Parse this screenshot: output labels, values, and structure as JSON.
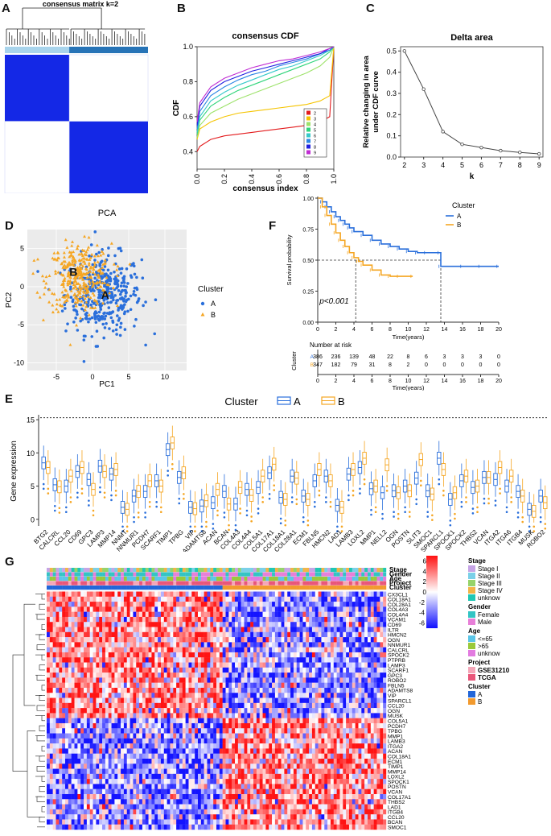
{
  "panels": {
    "A": {
      "label": "A",
      "title": "consensus matrix k=2",
      "colors": {
        "cluster1": "#a8d4ec",
        "cluster2": "#2774b7",
        "fill": "#1428e6",
        "empty": "#ffffff"
      }
    },
    "B": {
      "label": "B",
      "title": "consensus CDF",
      "xlabel": "consensus index",
      "ylabel": "CDF",
      "xticks": [
        "0.0",
        "0.2",
        "0.4",
        "0.6",
        "0.8",
        "1.0"
      ],
      "yticks": [
        "0.4",
        "0.6",
        "0.8",
        "1.0"
      ],
      "legend": [
        {
          "name": "2",
          "color": "#e31a1c"
        },
        {
          "name": "3",
          "color": "#f5c400"
        },
        {
          "name": "4",
          "color": "#9de26a"
        },
        {
          "name": "5",
          "color": "#2fd47a"
        },
        {
          "name": "6",
          "color": "#36c9c9"
        },
        {
          "name": "7",
          "color": "#2b86e3"
        },
        {
          "name": "8",
          "color": "#1f1fe0"
        },
        {
          "name": "9",
          "color": "#c02cd3"
        }
      ]
    },
    "C": {
      "label": "C",
      "title": "Delta area",
      "xlabel": "k",
      "ylabel_line1": "Relative changing in area",
      "ylabel_line2": "under CDF curve",
      "xticks": [
        "2",
        "3",
        "4",
        "5",
        "6",
        "7",
        "8",
        "9"
      ],
      "yticks": [
        "0.0",
        "0.1",
        "0.2",
        "0.3",
        "0.4",
        "0.5"
      ]
    },
    "D": {
      "label": "D",
      "title": "PCA",
      "xlabel": "PC1",
      "ylabel": "PC2",
      "xticks": [
        "-5",
        "0",
        "5",
        "10"
      ],
      "yticks": [
        "-10",
        "-5",
        "0",
        "5"
      ],
      "cluster_text_a": "A",
      "cluster_text_b": "B",
      "legend_title": "Cluster",
      "legend": [
        {
          "name": "A",
          "color": "#2a6fdb"
        },
        {
          "name": "B",
          "color": "#f5a623"
        }
      ]
    },
    "F": {
      "label": "F",
      "ylabel": "Survival probability",
      "xlabel": "Time(years)",
      "pvalue": "p<0.001",
      "yticks": [
        "0.00",
        "0.25",
        "0.50",
        "0.75",
        "1.00"
      ],
      "xticks": [
        "0",
        "2",
        "4",
        "6",
        "8",
        "10",
        "12",
        "14",
        "16",
        "18",
        "20"
      ],
      "legend_title": "Cluster",
      "legend": [
        {
          "name": "A",
          "color": "#2a6fdb"
        },
        {
          "name": "B",
          "color": "#f5a623"
        }
      ],
      "risk_title": "Number at risk",
      "risk_axis": "Cluster",
      "risk_row_labels": [
        "A",
        "B"
      ],
      "risk_A": [
        "386",
        "236",
        "139",
        "48",
        "22",
        "8",
        "6",
        "3",
        "3",
        "3",
        "0"
      ],
      "risk_B": [
        "347",
        "182",
        "79",
        "31",
        "8",
        "2",
        "0",
        "0",
        "0",
        "0",
        "0"
      ],
      "risk_xlabel": "Time(years)"
    },
    "E": {
      "label": "E",
      "legend_title": "Cluster",
      "legend": [
        {
          "name": "A",
          "color": "#2a6fdb"
        },
        {
          "name": "B",
          "color": "#f5a623"
        }
      ],
      "ylabel": "Gene expression",
      "yticks": [
        "0",
        "5",
        "10",
        "15"
      ],
      "genes": [
        "BTG2",
        "CALCRL",
        "CCL20",
        "CD69",
        "GPC3",
        "LAMP3",
        "MMP14",
        "NNMT",
        "NNMUR1",
        "PCDH7",
        "SCARF1",
        "TIMP1",
        "TPBG",
        "VIP",
        "ADAMTS8",
        "ACAN",
        "BCAN",
        "COL4A3",
        "COL4A4",
        "COL5A1",
        "COL17A1",
        "COL18A1",
        "COL28A1",
        "ECM1",
        "FBLN5",
        "HMCN2",
        "LAD1",
        "LAMB3",
        "LOXL2",
        "MMP1",
        "NELL2",
        "OGN",
        "POSTN",
        "SLIT3",
        "SMOC1",
        "SPARCL1",
        "SPOCK1",
        "SPOCK2",
        "THBS2",
        "VCAN",
        "ITGA2",
        "ITGA6",
        "ITGB4",
        "MUSK",
        "ROBO2"
      ]
    },
    "G": {
      "label": "G",
      "ann_rows": [
        "Stage",
        "Gender",
        "Age",
        "Project",
        "Cluster"
      ],
      "genes": [
        "CX3CL1",
        "COL18A1",
        "COL28A1",
        "COL4A3",
        "COL4A4",
        "VCAM1",
        "CD69",
        "ILTR",
        "HMCN2",
        "OGN",
        "NNMUR1",
        "CALCRL",
        "SPOCK2",
        "PTPRB",
        "LAMP3",
        "SCARF1",
        "GPC3",
        "ROBO2",
        "FBLN5",
        "ADAMTS8",
        "VIP",
        "SPARCL1",
        "CCL20",
        "OGN",
        "MUSK",
        "COL5A1",
        "PCDH7",
        "TPBG",
        "MMP1",
        "LAMB3",
        "ITGA2",
        "ACAN",
        "COL18A1",
        "ECM1",
        "TIMP1",
        "MMP14",
        "LOXL2",
        "SPOCK1",
        "POSTN",
        "VCAN",
        "COL17A1",
        "THBS2",
        "LAD1",
        "ITGB4",
        "CCL20",
        "BCAN",
        "SMOC1"
      ],
      "colorbar_ticks": [
        "6",
        "4",
        "2",
        "0",
        "-2",
        "-4",
        "-6"
      ],
      "legend_groups": [
        {
          "title": "Stage",
          "items": [
            {
              "name": "Stage I",
              "color": "#c6a4e6"
            },
            {
              "name": "Stage II",
              "color": "#7ad0e8"
            },
            {
              "name": "Stage III",
              "color": "#96d36a"
            },
            {
              "name": "Stage IV",
              "color": "#f2b447"
            },
            {
              "name": "unknow",
              "color": "#1fc7b4"
            }
          ]
        },
        {
          "title": "Gender",
          "items": [
            {
              "name": "Female",
              "color": "#33c4c4"
            },
            {
              "name": "Male",
              "color": "#e77fd8"
            }
          ]
        },
        {
          "title": "Age",
          "items": [
            {
              "name": "<=65",
              "color": "#5bc6e8"
            },
            {
              "name": ">65",
              "color": "#9ac93a"
            },
            {
              "name": "unknow",
              "color": "#e27be0"
            }
          ]
        },
        {
          "title": "Project",
          "items": [
            {
              "name": "GSE31210",
              "color": "#f4a6b8"
            },
            {
              "name": "TCGA",
              "color": "#e9567a"
            }
          ]
        },
        {
          "title": "Cluster",
          "items": [
            {
              "name": "A",
              "color": "#2266d9"
            },
            {
              "name": "B",
              "color": "#f29a2e"
            }
          ]
        }
      ]
    }
  },
  "chart_data": [
    {
      "type": "heatmap",
      "panel": "A",
      "title": "consensus matrix k=2",
      "clusters": 2,
      "cluster_fractions": [
        0.45,
        0.55
      ]
    },
    {
      "type": "line",
      "panel": "B",
      "title": "consensus CDF",
      "xlabel": "consensus index",
      "ylabel": "CDF",
      "xlim": [
        0,
        1
      ],
      "ylim": [
        0.3,
        1.0
      ],
      "x": [
        0.0,
        0.02,
        0.1,
        0.2,
        0.3,
        0.4,
        0.5,
        0.6,
        0.7,
        0.8,
        0.9,
        0.97,
        1.0
      ],
      "series": [
        {
          "name": "2",
          "values": [
            0.4,
            0.43,
            0.47,
            0.49,
            0.5,
            0.51,
            0.52,
            0.53,
            0.54,
            0.55,
            0.57,
            0.6,
            1.0
          ]
        },
        {
          "name": "3",
          "values": [
            0.47,
            0.53,
            0.57,
            0.6,
            0.62,
            0.63,
            0.64,
            0.65,
            0.66,
            0.67,
            0.69,
            0.72,
            1.0
          ]
        },
        {
          "name": "4",
          "values": [
            0.48,
            0.55,
            0.62,
            0.66,
            0.7,
            0.73,
            0.76,
            0.79,
            0.82,
            0.85,
            0.89,
            0.94,
            1.0
          ]
        },
        {
          "name": "5",
          "values": [
            0.5,
            0.58,
            0.66,
            0.71,
            0.75,
            0.78,
            0.81,
            0.84,
            0.87,
            0.9,
            0.93,
            0.97,
            1.0
          ]
        },
        {
          "name": "6",
          "values": [
            0.51,
            0.6,
            0.69,
            0.74,
            0.78,
            0.81,
            0.84,
            0.87,
            0.89,
            0.92,
            0.95,
            0.98,
            1.0
          ]
        },
        {
          "name": "7",
          "values": [
            0.53,
            0.63,
            0.72,
            0.77,
            0.81,
            0.84,
            0.86,
            0.89,
            0.91,
            0.93,
            0.96,
            0.98,
            1.0
          ]
        },
        {
          "name": "8",
          "values": [
            0.55,
            0.66,
            0.75,
            0.8,
            0.83,
            0.86,
            0.88,
            0.9,
            0.92,
            0.94,
            0.96,
            0.99,
            1.0
          ]
        },
        {
          "name": "9",
          "values": [
            0.57,
            0.68,
            0.77,
            0.82,
            0.85,
            0.88,
            0.9,
            0.92,
            0.93,
            0.95,
            0.97,
            0.99,
            1.0
          ]
        }
      ]
    },
    {
      "type": "line",
      "panel": "C",
      "title": "Delta area",
      "xlabel": "k",
      "ylabel": "Relative changing in area under CDF curve",
      "x": [
        2,
        3,
        4,
        5,
        6,
        7,
        8,
        9
      ],
      "ylim": [
        0,
        0.52
      ],
      "values": [
        0.5,
        0.32,
        0.12,
        0.06,
        0.045,
        0.03,
        0.022,
        0.015
      ]
    },
    {
      "type": "scatter",
      "panel": "D",
      "title": "PCA",
      "xlabel": "PC1",
      "ylabel": "PC2",
      "xlim": [
        -9,
        13
      ],
      "ylim": [
        -11,
        7.5
      ],
      "series": [
        {
          "name": "A",
          "n": 386,
          "center": [
            1.5,
            -1.0
          ],
          "spread": [
            2.6,
            2.6
          ]
        },
        {
          "name": "B",
          "n": 347,
          "center": [
            -1.8,
            1.2
          ],
          "spread": [
            2.2,
            2.2
          ]
        }
      ]
    },
    {
      "type": "line",
      "panel": "F",
      "subtype": "kaplan-meier",
      "xlabel": "Time(years)",
      "ylabel": "Survival probability",
      "xlim": [
        0,
        20
      ],
      "ylim": [
        0,
        1
      ],
      "series": [
        {
          "name": "A",
          "x": [
            0,
            0.5,
            1,
            1.5,
            2,
            2.5,
            3,
            3.5,
            4,
            5,
            6,
            7,
            8,
            9,
            10,
            11,
            12,
            13.5,
            13.6,
            16,
            18,
            20
          ],
          "values": [
            1.0,
            0.97,
            0.93,
            0.89,
            0.85,
            0.82,
            0.79,
            0.76,
            0.73,
            0.7,
            0.66,
            0.63,
            0.61,
            0.59,
            0.57,
            0.56,
            0.56,
            0.56,
            0.45,
            0.45,
            0.45,
            0.45
          ]
        },
        {
          "name": "B",
          "x": [
            0,
            0.5,
            1,
            1.5,
            2,
            2.5,
            3,
            3.5,
            4,
            4.5,
            5,
            6,
            7,
            8,
            9,
            10.5
          ],
          "values": [
            1.0,
            0.93,
            0.86,
            0.79,
            0.72,
            0.66,
            0.61,
            0.56,
            0.52,
            0.49,
            0.46,
            0.42,
            0.38,
            0.37,
            0.37,
            0.37
          ]
        }
      ],
      "median_survival": {
        "B": 4.2,
        "A": 13.6
      }
    },
    {
      "type": "bar",
      "subtype": "boxplot",
      "panel": "E",
      "ylabel": "Gene expression",
      "ylim": [
        -1,
        15.5
      ],
      "categories": [
        "BTG2",
        "CALCRL",
        "CCL20",
        "CD69",
        "GPC3",
        "LAMP3",
        "MMP14",
        "NNMT",
        "NNMUR1",
        "PCDH7",
        "SCARF1",
        "TIMP1",
        "TPBG",
        "VIP",
        "ADAMTS8",
        "ACAN",
        "BCAN",
        "COL4A3",
        "COL4A4",
        "COL5A1",
        "COL17A1",
        "COL18A1",
        "COL28A1",
        "ECM1",
        "FBLN5",
        "HMCN2",
        "LAD1",
        "LAMB3",
        "LOXL2",
        "MMP1",
        "NELL2",
        "OGN",
        "POSTN",
        "SLIT3",
        "SMOC1",
        "SPARCL1",
        "SPOCK1",
        "SPOCK2",
        "THBS2",
        "VCAN",
        "ITGA2",
        "ITGA6",
        "ITGB4",
        "MUSK",
        "ROBO2"
      ],
      "series": [
        {
          "name": "A",
          "values": [
            8.5,
            5.2,
            5.0,
            7.2,
            6.0,
            8.0,
            6.8,
            1.8,
            3.5,
            4.2,
            5.8,
            10.5,
            6.3,
            1.8,
            2.0,
            2.5,
            4.2,
            2.3,
            4.5,
            4.8,
            7.0,
            3.3,
            6.5,
            3.5,
            5.8,
            6.5,
            2.1,
            6.8,
            7.8,
            4.6,
            4.0,
            4.3,
            5.0,
            6.2,
            4.3,
            9.2,
            3.0,
            5.8,
            4.8,
            6.3,
            6.0,
            5.0,
            4.2,
            1.5,
            3.5
          ]
        },
        {
          "name": "B",
          "values": [
            7.8,
            4.9,
            6.5,
            7.8,
            4.5,
            7.2,
            7.5,
            1.5,
            4.2,
            5.8,
            5.0,
            11.5,
            7.0,
            1.6,
            2.8,
            4.5,
            2.3,
            4.8,
            3.6,
            6.5,
            8.3,
            3.0,
            6.2,
            3.0,
            7.5,
            5.8,
            1.8,
            7.5,
            9.2,
            5.0,
            8.2,
            4.0,
            4.3,
            9.0,
            3.8,
            7.5,
            4.0,
            6.5,
            5.0,
            6.3,
            7.8,
            6.5,
            3.5,
            1.2,
            2.5
          ]
        }
      ]
    },
    {
      "type": "heatmap",
      "panel": "G",
      "rows": 47,
      "cluster_split_fraction": 0.52,
      "upper_rows_high_in": "A",
      "lower_rows_high_in": "B",
      "color_range": [
        -6,
        6
      ]
    }
  ]
}
